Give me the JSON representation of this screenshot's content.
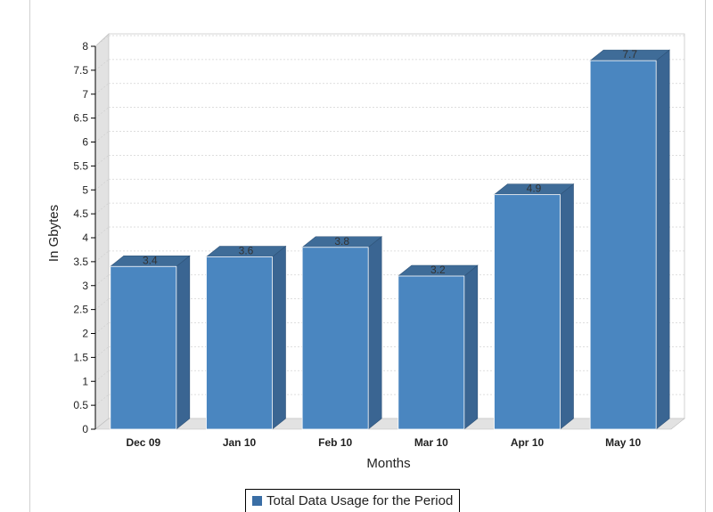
{
  "chart_data": {
    "type": "bar",
    "categories": [
      "Dec 09",
      "Jan 10",
      "Feb 10",
      "Mar 10",
      "Apr 10",
      "May 10"
    ],
    "values": [
      3.4,
      3.6,
      3.8,
      3.2,
      4.9,
      7.7
    ],
    "data_labels": [
      "3.4",
      "3.6",
      "3.8",
      "3.2",
      "4.9",
      "7.7"
    ],
    "xlabel": "Months",
    "ylabel": "In Gbytes",
    "ylim": [
      0,
      8
    ],
    "yticks": [
      "0",
      "0.5",
      "1",
      "1.5",
      "2",
      "2.5",
      "3",
      "3.5",
      "4",
      "4.5",
      "5",
      "5.5",
      "6",
      "6.5",
      "7",
      "7.5",
      "8"
    ],
    "series": [
      {
        "name": "Total Data Usage for the Period",
        "values": [
          3.4,
          3.6,
          3.8,
          3.2,
          4.9,
          7.7
        ]
      }
    ],
    "legend_position": "bottom",
    "grid": true,
    "colors": {
      "front": "#4a86c0",
      "side": "#3a6592",
      "top": "#3f6c98",
      "wall": "#e2e2e2"
    }
  }
}
